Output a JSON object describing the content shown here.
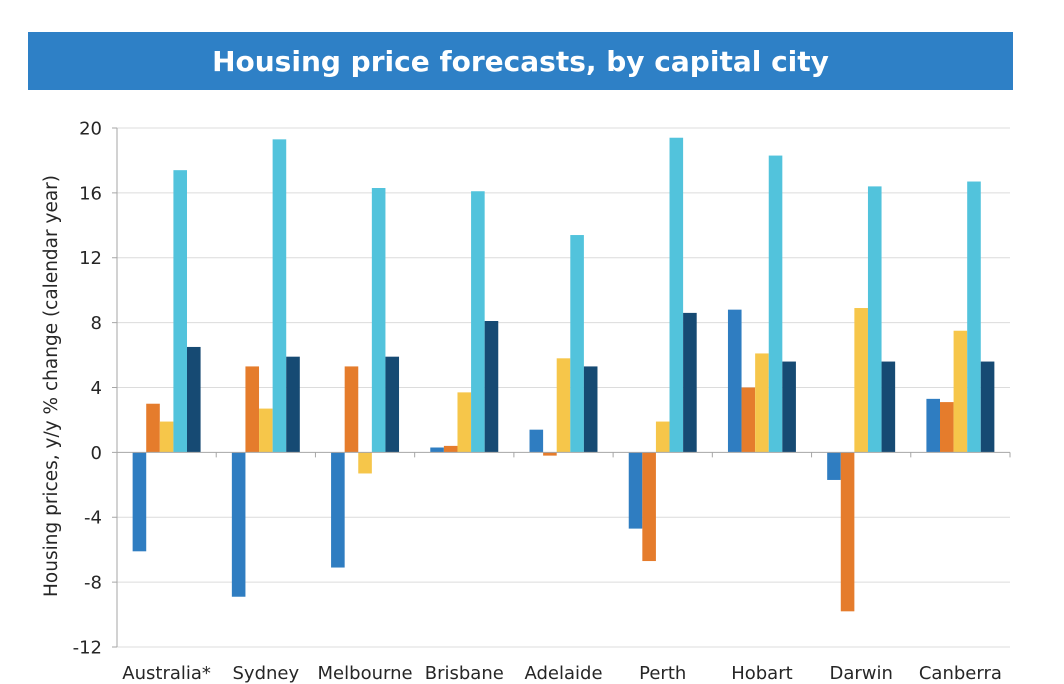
{
  "chart_data": {
    "type": "bar",
    "title": "Housing price forecasts, by capital city",
    "xlabel": "",
    "ylabel": "Housing prices, y/y % change (calendar year)",
    "categories": [
      "Australia*",
      "Sydney",
      "Melbourne",
      "Brisbane",
      "Adelaide",
      "Perth",
      "Hobart",
      "Darwin",
      "Canberra"
    ],
    "ylim": [
      -12,
      20
    ],
    "yticks": [
      20,
      16,
      12,
      8,
      4,
      0,
      -4,
      -8,
      -12
    ],
    "grid": true,
    "legend": "none",
    "series": [
      {
        "color": "#2f7dc1",
        "values": [
          -6.1,
          -8.9,
          -7.1,
          0.3,
          1.4,
          -4.7,
          8.8,
          -1.7,
          3.3
        ]
      },
      {
        "color": "#e57c2c",
        "values": [
          3.0,
          5.3,
          5.3,
          0.4,
          -0.2,
          -6.7,
          4.0,
          -9.8,
          3.1
        ]
      },
      {
        "color": "#f6c64a",
        "values": [
          1.9,
          2.7,
          -1.3,
          3.7,
          5.8,
          1.9,
          6.1,
          8.9,
          7.5
        ]
      },
      {
        "color": "#52c3dc",
        "values": [
          17.4,
          19.3,
          16.3,
          16.1,
          13.4,
          19.4,
          18.3,
          16.4,
          16.7
        ]
      },
      {
        "color": "#164a73",
        "values": [
          6.5,
          5.9,
          5.9,
          8.1,
          5.3,
          8.6,
          5.6,
          5.6,
          5.6
        ]
      }
    ]
  },
  "colors": {
    "title_banner": "#2e80c6",
    "title_text": "#ffffff",
    "grid": "#dcdcdc",
    "axis": "#a6a6a6",
    "label_text": "#262626"
  }
}
